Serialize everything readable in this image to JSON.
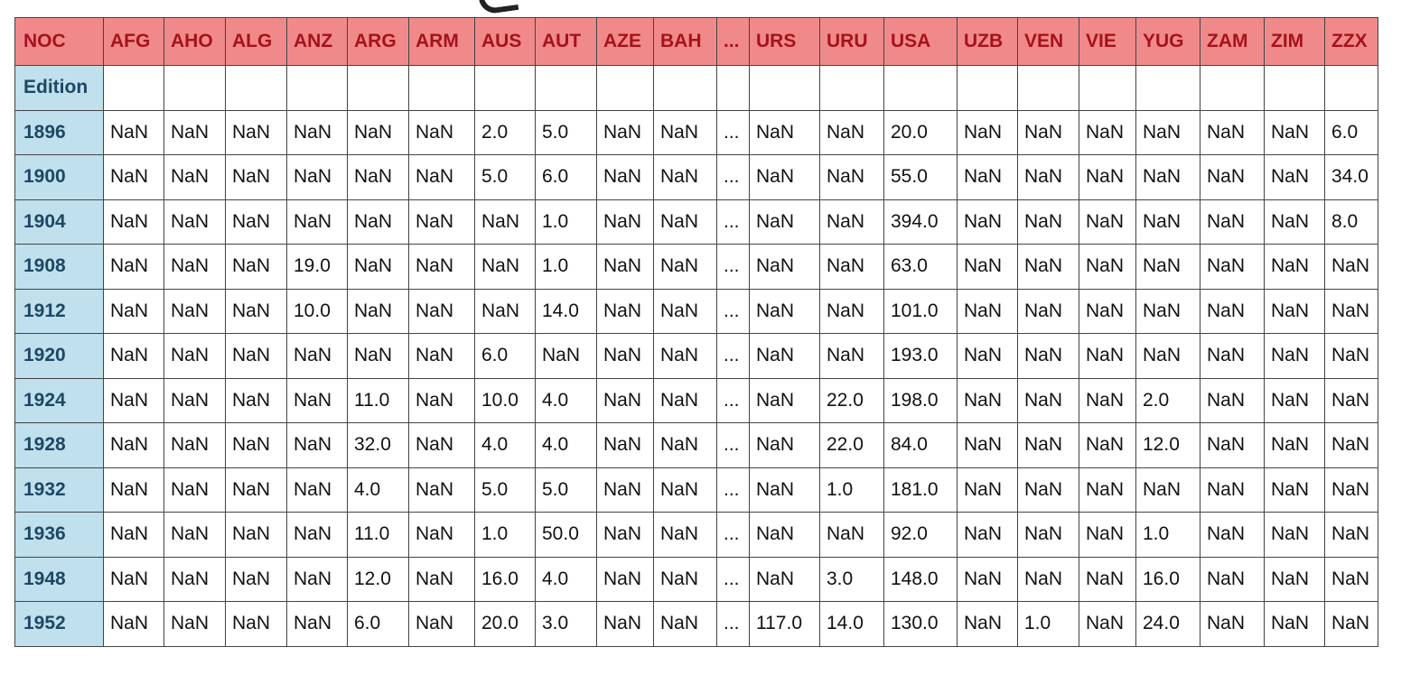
{
  "table": {
    "corner_label": "NOC",
    "index_name": "Edition",
    "columns": [
      "AFG",
      "AHO",
      "ALG",
      "ANZ",
      "ARG",
      "ARM",
      "AUS",
      "AUT",
      "AZE",
      "BAH",
      "...",
      "URS",
      "URU",
      "USA",
      "UZB",
      "VEN",
      "VIE",
      "YUG",
      "ZAM",
      "ZIM",
      "ZZX"
    ],
    "rows": [
      {
        "label": "1896",
        "cells": [
          "NaN",
          "NaN",
          "NaN",
          "NaN",
          "NaN",
          "NaN",
          "2.0",
          "5.0",
          "NaN",
          "NaN",
          "...",
          "NaN",
          "NaN",
          "20.0",
          "NaN",
          "NaN",
          "NaN",
          "NaN",
          "NaN",
          "NaN",
          "6.0"
        ]
      },
      {
        "label": "1900",
        "cells": [
          "NaN",
          "NaN",
          "NaN",
          "NaN",
          "NaN",
          "NaN",
          "5.0",
          "6.0",
          "NaN",
          "NaN",
          "...",
          "NaN",
          "NaN",
          "55.0",
          "NaN",
          "NaN",
          "NaN",
          "NaN",
          "NaN",
          "NaN",
          "34.0"
        ]
      },
      {
        "label": "1904",
        "cells": [
          "NaN",
          "NaN",
          "NaN",
          "NaN",
          "NaN",
          "NaN",
          "NaN",
          "1.0",
          "NaN",
          "NaN",
          "...",
          "NaN",
          "NaN",
          "394.0",
          "NaN",
          "NaN",
          "NaN",
          "NaN",
          "NaN",
          "NaN",
          "8.0"
        ]
      },
      {
        "label": "1908",
        "cells": [
          "NaN",
          "NaN",
          "NaN",
          "19.0",
          "NaN",
          "NaN",
          "NaN",
          "1.0",
          "NaN",
          "NaN",
          "...",
          "NaN",
          "NaN",
          "63.0",
          "NaN",
          "NaN",
          "NaN",
          "NaN",
          "NaN",
          "NaN",
          "NaN"
        ]
      },
      {
        "label": "1912",
        "cells": [
          "NaN",
          "NaN",
          "NaN",
          "10.0",
          "NaN",
          "NaN",
          "NaN",
          "14.0",
          "NaN",
          "NaN",
          "...",
          "NaN",
          "NaN",
          "101.0",
          "NaN",
          "NaN",
          "NaN",
          "NaN",
          "NaN",
          "NaN",
          "NaN"
        ]
      },
      {
        "label": "1920",
        "cells": [
          "NaN",
          "NaN",
          "NaN",
          "NaN",
          "NaN",
          "NaN",
          "6.0",
          "NaN",
          "NaN",
          "NaN",
          "...",
          "NaN",
          "NaN",
          "193.0",
          "NaN",
          "NaN",
          "NaN",
          "NaN",
          "NaN",
          "NaN",
          "NaN"
        ]
      },
      {
        "label": "1924",
        "cells": [
          "NaN",
          "NaN",
          "NaN",
          "NaN",
          "11.0",
          "NaN",
          "10.0",
          "4.0",
          "NaN",
          "NaN",
          "...",
          "NaN",
          "22.0",
          "198.0",
          "NaN",
          "NaN",
          "NaN",
          "2.0",
          "NaN",
          "NaN",
          "NaN"
        ]
      },
      {
        "label": "1928",
        "cells": [
          "NaN",
          "NaN",
          "NaN",
          "NaN",
          "32.0",
          "NaN",
          "4.0",
          "4.0",
          "NaN",
          "NaN",
          "...",
          "NaN",
          "22.0",
          "84.0",
          "NaN",
          "NaN",
          "NaN",
          "12.0",
          "NaN",
          "NaN",
          "NaN"
        ]
      },
      {
        "label": "1932",
        "cells": [
          "NaN",
          "NaN",
          "NaN",
          "NaN",
          "4.0",
          "NaN",
          "5.0",
          "5.0",
          "NaN",
          "NaN",
          "...",
          "NaN",
          "1.0",
          "181.0",
          "NaN",
          "NaN",
          "NaN",
          "NaN",
          "NaN",
          "NaN",
          "NaN"
        ]
      },
      {
        "label": "1936",
        "cells": [
          "NaN",
          "NaN",
          "NaN",
          "NaN",
          "11.0",
          "NaN",
          "1.0",
          "50.0",
          "NaN",
          "NaN",
          "...",
          "NaN",
          "NaN",
          "92.0",
          "NaN",
          "NaN",
          "NaN",
          "1.0",
          "NaN",
          "NaN",
          "NaN"
        ]
      },
      {
        "label": "1948",
        "cells": [
          "NaN",
          "NaN",
          "NaN",
          "NaN",
          "12.0",
          "NaN",
          "16.0",
          "4.0",
          "NaN",
          "NaN",
          "...",
          "NaN",
          "3.0",
          "148.0",
          "NaN",
          "NaN",
          "NaN",
          "16.0",
          "NaN",
          "NaN",
          "NaN"
        ]
      },
      {
        "label": "1952",
        "cells": [
          "NaN",
          "NaN",
          "NaN",
          "NaN",
          "6.0",
          "NaN",
          "20.0",
          "3.0",
          "NaN",
          "NaN",
          "...",
          "117.0",
          "14.0",
          "130.0",
          "NaN",
          "1.0",
          "NaN",
          "24.0",
          "NaN",
          "NaN",
          "NaN"
        ]
      }
    ]
  },
  "colors": {
    "header_bg": "#f08a8a",
    "header_text": "#a6121b",
    "index_bg": "#bfe0ec",
    "index_text": "#1d4763",
    "border": "#444444"
  }
}
